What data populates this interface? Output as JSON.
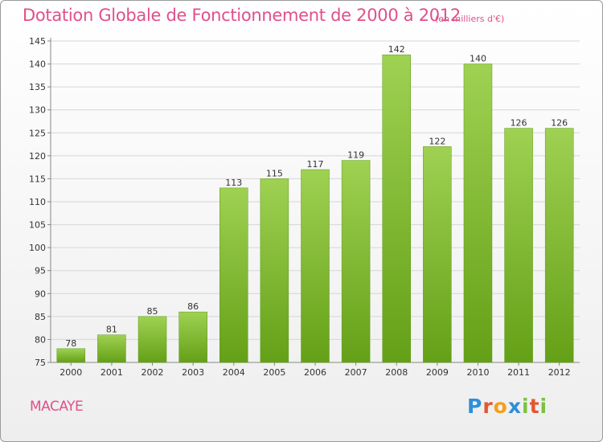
{
  "chart_data": {
    "type": "bar",
    "title": "Dotation Globale de Fonctionnement de 2000 à 2012",
    "subtitle": "(en milliers d'€)",
    "categories": [
      "2000",
      "2001",
      "2002",
      "2003",
      "2004",
      "2005",
      "2006",
      "2007",
      "2008",
      "2009",
      "2010",
      "2011",
      "2012"
    ],
    "values": [
      78,
      81,
      85,
      86,
      113,
      115,
      117,
      119,
      142,
      122,
      140,
      126,
      126
    ],
    "ylim": [
      75,
      145
    ],
    "yticks": [
      75,
      80,
      85,
      90,
      95,
      100,
      105,
      110,
      115,
      120,
      125,
      130,
      135,
      140,
      145
    ],
    "grid": true,
    "bar_color": "#7ab82e"
  },
  "footer": {
    "town": "MACAYE",
    "logo": {
      "p": "P",
      "r": "r",
      "o": "o",
      "x": "x",
      "i1": "i",
      "t": "t",
      "i2": "i"
    }
  }
}
